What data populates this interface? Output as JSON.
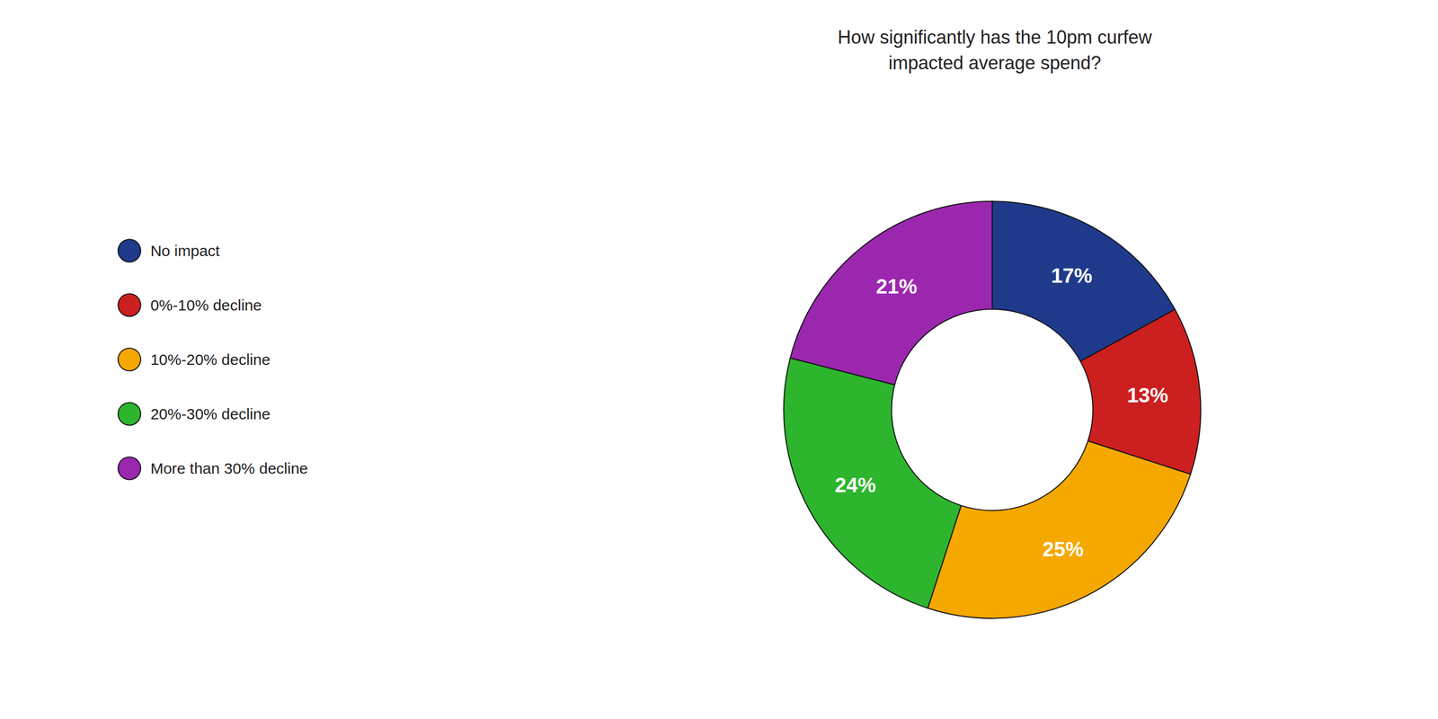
{
  "chart_data": {
    "type": "pie",
    "title": "How significantly has the 10pm curfew\nimpacted average spend?",
    "categories": [
      "No impact",
      "0%-10% decline",
      "10%-20% decline",
      "20%-30% decline",
      "More than 30% decline"
    ],
    "values": [
      17,
      13,
      25,
      24,
      21
    ],
    "value_labels": [
      "17%",
      "13%",
      "25%",
      "24%",
      "21%"
    ],
    "colors": [
      "#1f3a8a",
      "#cc1f1f",
      "#f5a800",
      "#2db52d",
      "#9b27af"
    ],
    "data_labels": true,
    "legend": "left"
  }
}
